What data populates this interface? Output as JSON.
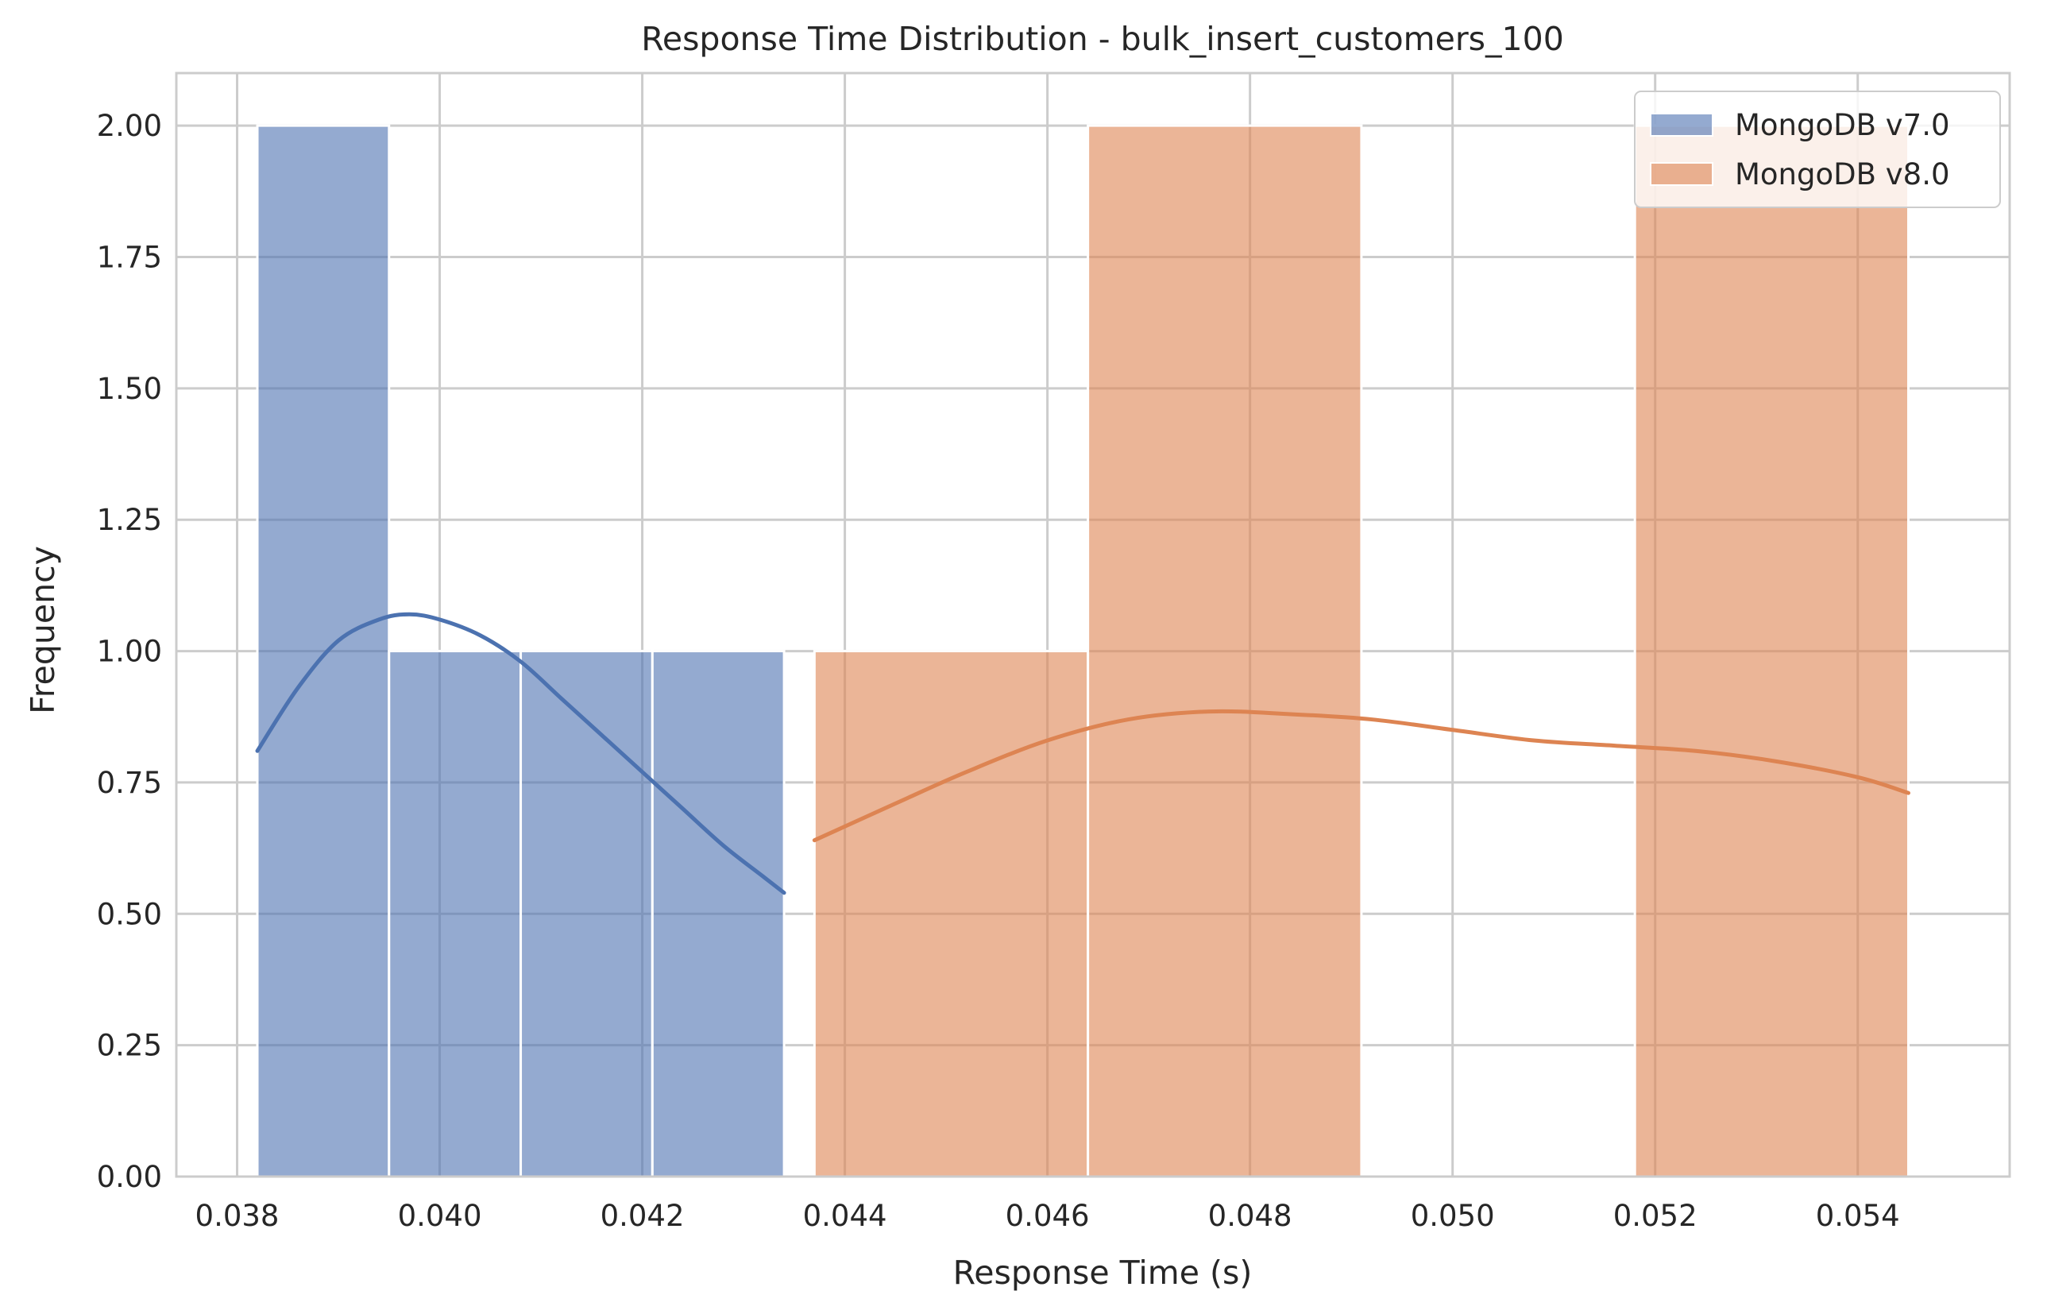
{
  "chart_data": {
    "type": "bar",
    "title": "Response Time Distribution - bulk_insert_customers_100",
    "xlabel": "Response Time (s)",
    "ylabel": "Frequency",
    "xlim": [
      0.0374,
      0.0555
    ],
    "ylim": [
      0,
      2.1
    ],
    "xticks": [
      "0.038",
      "0.040",
      "0.042",
      "0.044",
      "0.046",
      "0.048",
      "0.050",
      "0.052",
      "0.054"
    ],
    "yticks": [
      "0.00",
      "0.25",
      "0.50",
      "0.75",
      "1.00",
      "1.25",
      "1.50",
      "1.75",
      "2.00"
    ],
    "grid": true,
    "legend_position": "top-right",
    "series": [
      {
        "name": "MongoDB v7.0",
        "color": "#4c72b0",
        "bins": [
          {
            "x0": 0.0382,
            "x1": 0.0395,
            "count": 2
          },
          {
            "x0": 0.0395,
            "x1": 0.0408,
            "count": 1
          },
          {
            "x0": 0.0408,
            "x1": 0.0421,
            "count": 1
          },
          {
            "x0": 0.0421,
            "x1": 0.0434,
            "count": 1
          }
        ],
        "kde": {
          "x": [
            0.0382,
            0.0386,
            0.039,
            0.0394,
            0.0397,
            0.04,
            0.0404,
            0.0408,
            0.0412,
            0.0416,
            0.042,
            0.0424,
            0.0428,
            0.0432,
            0.0434
          ],
          "y": [
            0.81,
            0.93,
            1.02,
            1.06,
            1.07,
            1.06,
            1.03,
            0.98,
            0.91,
            0.84,
            0.77,
            0.7,
            0.63,
            0.57,
            0.54
          ]
        }
      },
      {
        "name": "MongoDB v8.0",
        "color": "#dd8452",
        "bins": [
          {
            "x0": 0.0437,
            "x1": 0.0464,
            "count": 1
          },
          {
            "x0": 0.0464,
            "x1": 0.0491,
            "count": 2
          },
          {
            "x0": 0.0491,
            "x1": 0.0518,
            "count": 0
          },
          {
            "x0": 0.0518,
            "x1": 0.0545,
            "count": 2
          }
        ],
        "kde": {
          "x": [
            0.0437,
            0.0445,
            0.0452,
            0.046,
            0.0468,
            0.0476,
            0.0484,
            0.0492,
            0.05,
            0.0508,
            0.0516,
            0.0524,
            0.0532,
            0.054,
            0.0545
          ],
          "y": [
            0.64,
            0.71,
            0.77,
            0.83,
            0.87,
            0.885,
            0.88,
            0.87,
            0.85,
            0.83,
            0.82,
            0.81,
            0.79,
            0.76,
            0.73
          ]
        }
      }
    ]
  }
}
